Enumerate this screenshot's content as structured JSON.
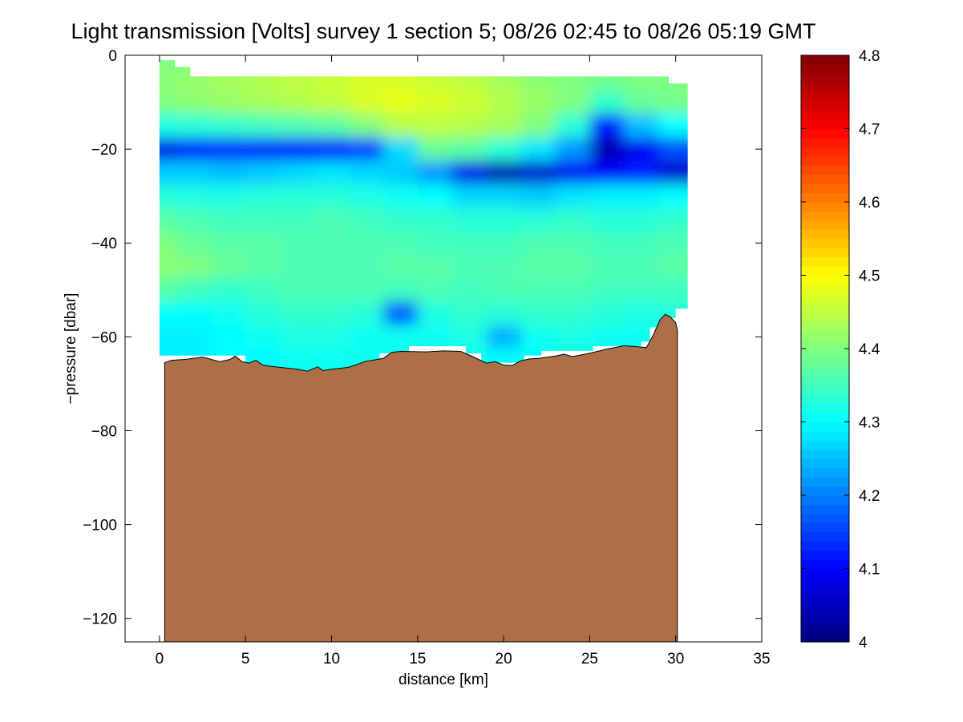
{
  "chart_data": {
    "type": "heatmap",
    "title": "Light transmission [Volts] survey 1 section 5; 08/26 02:45 to 08/26 05:19 GMT",
    "xlabel": "distance [km]",
    "ylabel": "−pressure [dbar]",
    "xlim": [
      -2,
      35
    ],
    "ylim": [
      -125,
      0
    ],
    "xticks": [
      0,
      5,
      10,
      15,
      20,
      25,
      30,
      35
    ],
    "xtick_labels": [
      "0",
      "5",
      "10",
      "15",
      "20",
      "25",
      "30",
      "35"
    ],
    "yticks": [
      0,
      -20,
      -40,
      -60,
      -80,
      -100,
      -120
    ],
    "ytick_labels": [
      "0",
      "−20",
      "−40",
      "−60",
      "−80",
      "−100",
      "−120"
    ],
    "colorbar": {
      "range": [
        4.0,
        4.8
      ],
      "ticks": [
        4.0,
        4.1,
        4.2,
        4.3,
        4.4,
        4.5,
        4.6,
        4.7,
        4.8
      ],
      "tick_labels": [
        "4",
        "4.1",
        "4.2",
        "4.3",
        "4.4",
        "4.5",
        "4.6",
        "4.7",
        "4.8"
      ],
      "colormap": "jet",
      "levels": 64
    },
    "field": {
      "x": [
        0,
        2,
        4,
        6,
        8,
        10,
        12,
        14,
        16,
        18,
        20,
        22,
        24,
        26,
        28,
        30
      ],
      "depth": [
        -2,
        -5,
        -10,
        -15,
        -20,
        -25,
        -30,
        -35,
        -40,
        -45,
        -50,
        -55,
        -60,
        -65
      ],
      "values": [
        [
          4.4,
          4.4,
          4.41,
          4.42,
          4.43,
          4.44,
          4.45,
          4.45,
          4.44,
          4.43,
          4.41,
          4.4,
          4.39,
          4.38,
          4.39,
          4.39
        ],
        [
          4.41,
          4.42,
          4.43,
          4.44,
          4.45,
          4.46,
          4.47,
          4.47,
          4.46,
          4.45,
          4.43,
          4.41,
          4.4,
          4.39,
          4.4,
          4.4
        ],
        [
          4.4,
          4.41,
          4.42,
          4.43,
          4.44,
          4.45,
          4.47,
          4.48,
          4.47,
          4.46,
          4.44,
          4.42,
          4.4,
          4.34,
          4.38,
          4.39
        ],
        [
          4.32,
          4.33,
          4.34,
          4.35,
          4.36,
          4.37,
          4.4,
          4.44,
          4.45,
          4.44,
          4.43,
          4.4,
          4.33,
          4.12,
          4.25,
          4.3
        ],
        [
          4.08,
          4.12,
          4.13,
          4.12,
          4.11,
          4.12,
          4.15,
          4.27,
          4.38,
          4.37,
          4.33,
          4.28,
          4.22,
          4.04,
          4.09,
          4.16
        ],
        [
          4.26,
          4.26,
          4.25,
          4.26,
          4.27,
          4.28,
          4.27,
          4.26,
          4.22,
          4.08,
          4.04,
          4.06,
          4.09,
          4.1,
          4.12,
          4.06
        ],
        [
          4.33,
          4.32,
          4.32,
          4.33,
          4.33,
          4.33,
          4.32,
          4.31,
          4.3,
          4.27,
          4.27,
          4.26,
          4.28,
          4.29,
          4.29,
          4.3
        ],
        [
          4.37,
          4.36,
          4.35,
          4.35,
          4.35,
          4.36,
          4.35,
          4.34,
          4.34,
          4.33,
          4.33,
          4.33,
          4.34,
          4.33,
          4.33,
          4.34
        ],
        [
          4.4,
          4.38,
          4.37,
          4.37,
          4.36,
          4.36,
          4.36,
          4.36,
          4.35,
          4.35,
          4.35,
          4.36,
          4.36,
          4.35,
          4.35,
          4.36
        ],
        [
          4.41,
          4.4,
          4.38,
          4.37,
          4.36,
          4.36,
          4.36,
          4.37,
          4.37,
          4.36,
          4.36,
          4.37,
          4.37,
          4.36,
          4.36,
          4.37
        ],
        [
          4.37,
          4.35,
          4.34,
          4.35,
          4.36,
          4.36,
          4.36,
          4.35,
          4.36,
          4.35,
          4.36,
          4.36,
          4.36,
          4.35,
          4.35,
          4.35
        ],
        [
          4.3,
          4.3,
          4.31,
          4.33,
          4.34,
          4.34,
          4.33,
          4.17,
          4.32,
          4.34,
          4.33,
          4.34,
          4.34,
          4.33,
          4.32,
          4.33
        ],
        [
          4.29,
          4.29,
          4.3,
          4.31,
          4.32,
          4.32,
          4.31,
          4.31,
          4.31,
          4.32,
          4.24,
          4.31,
          4.32,
          4.31,
          4.31,
          4.32
        ],
        [
          4.29,
          4.29,
          4.3,
          4.3,
          4.31,
          4.31,
          4.31,
          4.31,
          4.31,
          4.31,
          4.3,
          4.3,
          4.31,
          4.3,
          4.31,
          4.31
        ]
      ],
      "top_boundary": [
        [
          0,
          -1
        ],
        [
          0.9,
          -1
        ],
        [
          0.9,
          -2.5
        ],
        [
          1.8,
          -2.5
        ],
        [
          1.8,
          -4.5
        ],
        [
          29.6,
          -4.5
        ],
        [
          29.6,
          -6
        ],
        [
          30.7,
          -6
        ]
      ],
      "right_boundary": [
        [
          30.7,
          -6
        ],
        [
          30.7,
          -54
        ],
        [
          30.0,
          -54
        ]
      ],
      "bottom_boundary": [
        [
          0,
          -64
        ],
        [
          5,
          -64
        ],
        [
          5,
          -66
        ],
        [
          6,
          -66
        ],
        [
          6,
          -67.5
        ],
        [
          12.8,
          -67.5
        ],
        [
          12.8,
          -63.5
        ],
        [
          14.5,
          -63.5
        ],
        [
          14.5,
          -62
        ],
        [
          17.8,
          -62
        ],
        [
          17.8,
          -63.5
        ],
        [
          18.7,
          -63.5
        ],
        [
          18.7,
          -65.5
        ],
        [
          21.2,
          -65.5
        ],
        [
          21.2,
          -64
        ],
        [
          22.2,
          -64
        ],
        [
          22.2,
          -63
        ],
        [
          25.2,
          -63
        ],
        [
          25.2,
          -62
        ],
        [
          28.0,
          -62
        ],
        [
          28.0,
          -61
        ],
        [
          28.5,
          -61
        ],
        [
          28.5,
          -58
        ],
        [
          29.3,
          -58
        ],
        [
          29.3,
          -56
        ],
        [
          30.0,
          -56
        ]
      ]
    },
    "seafloor": {
      "color": "#ad6f48",
      "profile": [
        [
          0.3,
          -65.5
        ],
        [
          0.7,
          -65.0
        ],
        [
          1.5,
          -64.8
        ],
        [
          2.5,
          -64.3
        ],
        [
          3.5,
          -65.3
        ],
        [
          4.1,
          -64.8
        ],
        [
          4.4,
          -64.1
        ],
        [
          4.8,
          -65.3
        ],
        [
          5.2,
          -65.6
        ],
        [
          5.6,
          -65.0
        ],
        [
          6.0,
          -66.0
        ],
        [
          6.5,
          -66.3
        ],
        [
          7.0,
          -66.5
        ],
        [
          8.0,
          -66.9
        ],
        [
          8.6,
          -67.3
        ],
        [
          9.2,
          -66.4
        ],
        [
          9.5,
          -67.2
        ],
        [
          10.0,
          -66.9
        ],
        [
          11.0,
          -66.5
        ],
        [
          12.0,
          -65.2
        ],
        [
          12.5,
          -64.9
        ],
        [
          13.0,
          -64.6
        ],
        [
          13.5,
          -63.3
        ],
        [
          14.0,
          -63.1
        ],
        [
          15.5,
          -63.2
        ],
        [
          16.5,
          -63.0
        ],
        [
          17.5,
          -63.1
        ],
        [
          18.2,
          -64.2
        ],
        [
          19.0,
          -65.6
        ],
        [
          19.5,
          -65.3
        ],
        [
          20.0,
          -66.0
        ],
        [
          20.5,
          -66.1
        ],
        [
          21.0,
          -65.1
        ],
        [
          21.5,
          -64.7
        ],
        [
          22.0,
          -64.6
        ],
        [
          23.0,
          -64.1
        ],
        [
          23.5,
          -63.7
        ],
        [
          24.0,
          -64.2
        ],
        [
          25.0,
          -63.5
        ],
        [
          26.0,
          -62.6
        ],
        [
          27.0,
          -61.9
        ],
        [
          27.8,
          -62.1
        ],
        [
          28.3,
          -62.3
        ],
        [
          28.7,
          -59.6
        ],
        [
          29.1,
          -56.3
        ],
        [
          29.4,
          -55.2
        ],
        [
          29.7,
          -55.8
        ],
        [
          30.0,
          -57.0
        ],
        [
          30.1,
          -58.6
        ]
      ]
    }
  }
}
